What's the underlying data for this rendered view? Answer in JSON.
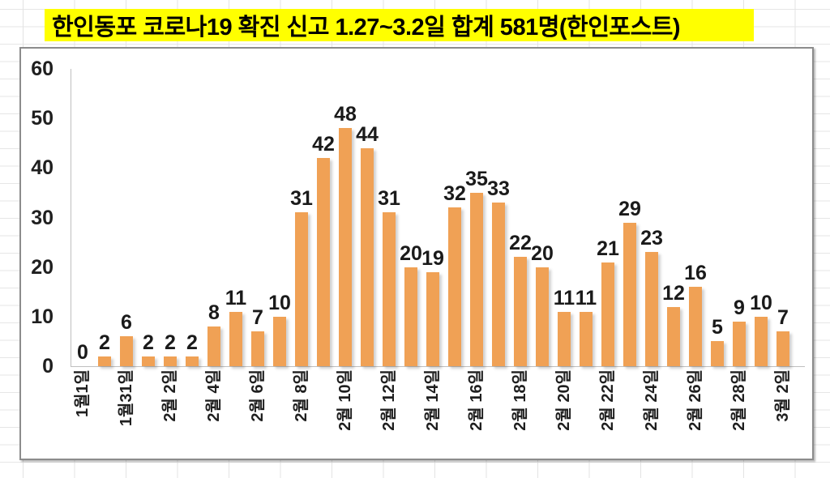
{
  "page": {
    "title": "한인동포 코로나19 확진 신고 1.27~3.2일 합계 581명(한인포스트)",
    "title_highlight_color": "#FFFF00"
  },
  "chart_data": {
    "type": "bar",
    "title": "한인동포 코로나19 확진 신고 1.27~3.2일 합계 581명(한인포스트)",
    "values": [
      0,
      2,
      6,
      2,
      2,
      2,
      8,
      11,
      7,
      10,
      31,
      42,
      48,
      44,
      31,
      20,
      19,
      32,
      35,
      33,
      22,
      20,
      11,
      11,
      21,
      29,
      23,
      12,
      16,
      5,
      9,
      10,
      7
    ],
    "data_labels_shown": true,
    "x_tick_labels": [
      "1월1일",
      "1월31일",
      "2월 2일",
      "2월 4일",
      "2월 6일",
      "2월 8일",
      "2월 10일",
      "2월 12일",
      "2월 14일",
      "2월 16일",
      "2월 18일",
      "2월 20일",
      "2월 22일",
      "2월 24일",
      "2월 26일",
      "2월 28일",
      "3월 2일"
    ],
    "x_tick_interval": 2,
    "x_label_rotation_deg": 90,
    "y_ticks": [
      0,
      10,
      20,
      30,
      40,
      50,
      60
    ],
    "ylim": [
      0,
      60
    ],
    "xlabel": "",
    "ylabel": "",
    "grid": "off",
    "legend": "none",
    "total": 581,
    "bar_color": "#F0A155",
    "axis_color": "#BFBFBF",
    "label_color": "#1A1A1A"
  }
}
